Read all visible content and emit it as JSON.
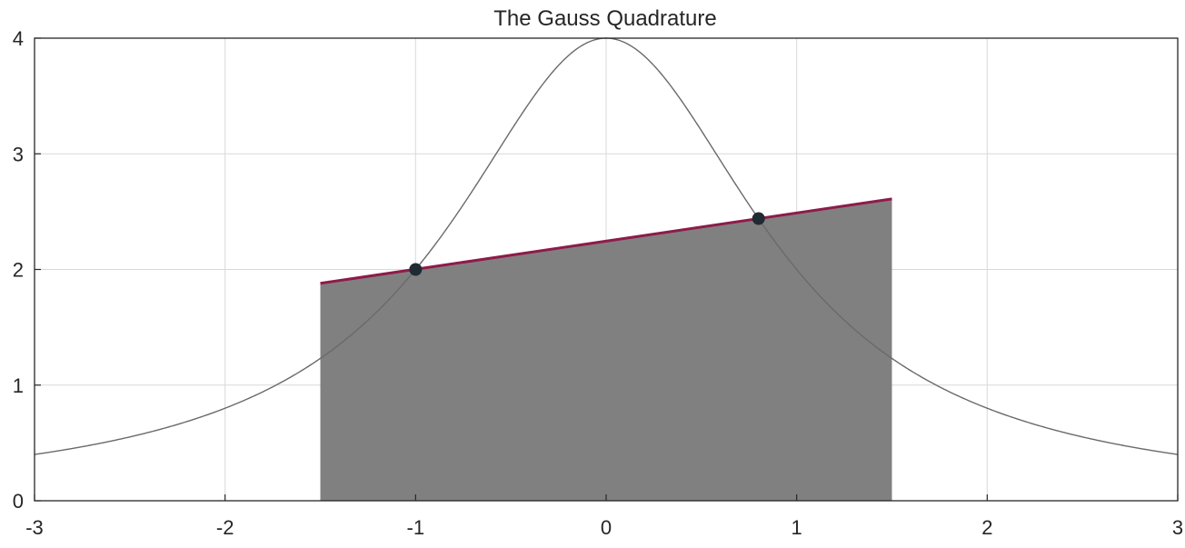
{
  "chart_data": {
    "type": "line",
    "title": "The Gauss Quadrature",
    "xlabel": "",
    "ylabel": "",
    "xlim": [
      -3,
      3
    ],
    "ylim": [
      0,
      4
    ],
    "x_ticks": [
      -3,
      -2,
      -1,
      0,
      1,
      2,
      3
    ],
    "y_ticks": [
      0,
      1,
      2,
      3,
      4
    ],
    "x_tick_labels": [
      "-3",
      "-2",
      "-1",
      "0",
      "1",
      "2",
      "3"
    ],
    "y_tick_labels": [
      "0",
      "1",
      "2",
      "3",
      "4"
    ],
    "grid": true,
    "curve": {
      "function": "4/(1+x^2)",
      "x_range": [
        -3,
        3
      ]
    },
    "shaded_region": {
      "x": [
        -1.5,
        1.5
      ],
      "y": [
        1.88,
        2.61
      ],
      "color": "#808080"
    },
    "linear_fit": {
      "x": [
        -1.5,
        1.5
      ],
      "y": [
        1.88,
        2.61
      ],
      "color": "#8e1b4a"
    },
    "points": {
      "x": [
        -1.0,
        0.8
      ],
      "y": [
        2.0,
        2.44
      ],
      "color": "#1f2a33"
    }
  }
}
